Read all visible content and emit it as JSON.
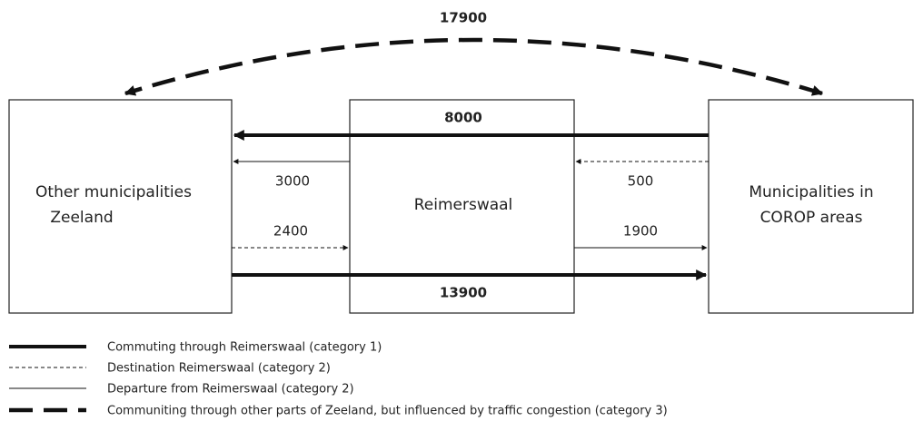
{
  "nodes": [
    {
      "lines": [
        "Other municipalities",
        "Zeeland"
      ]
    },
    {
      "lines": [
        "Reimerswaal"
      ]
    },
    {
      "lines": [
        "Municipalities in",
        "COROP areas"
      ]
    }
  ],
  "flows": [
    {
      "label": "17900"
    },
    {
      "label": "8000"
    },
    {
      "label": "3000"
    },
    {
      "label": "500"
    },
    {
      "label": "2400"
    },
    {
      "label": "1900"
    },
    {
      "label": "13900"
    }
  ],
  "legend": [
    "Commuting through Reimerswaal (category 1)",
    "Destination Reimerswaal (category 2)",
    "Departure from Reimerswaal (category 2)",
    "Communiting through other parts of Zeeland, but influenced by traffic congestion (category 3)"
  ]
}
